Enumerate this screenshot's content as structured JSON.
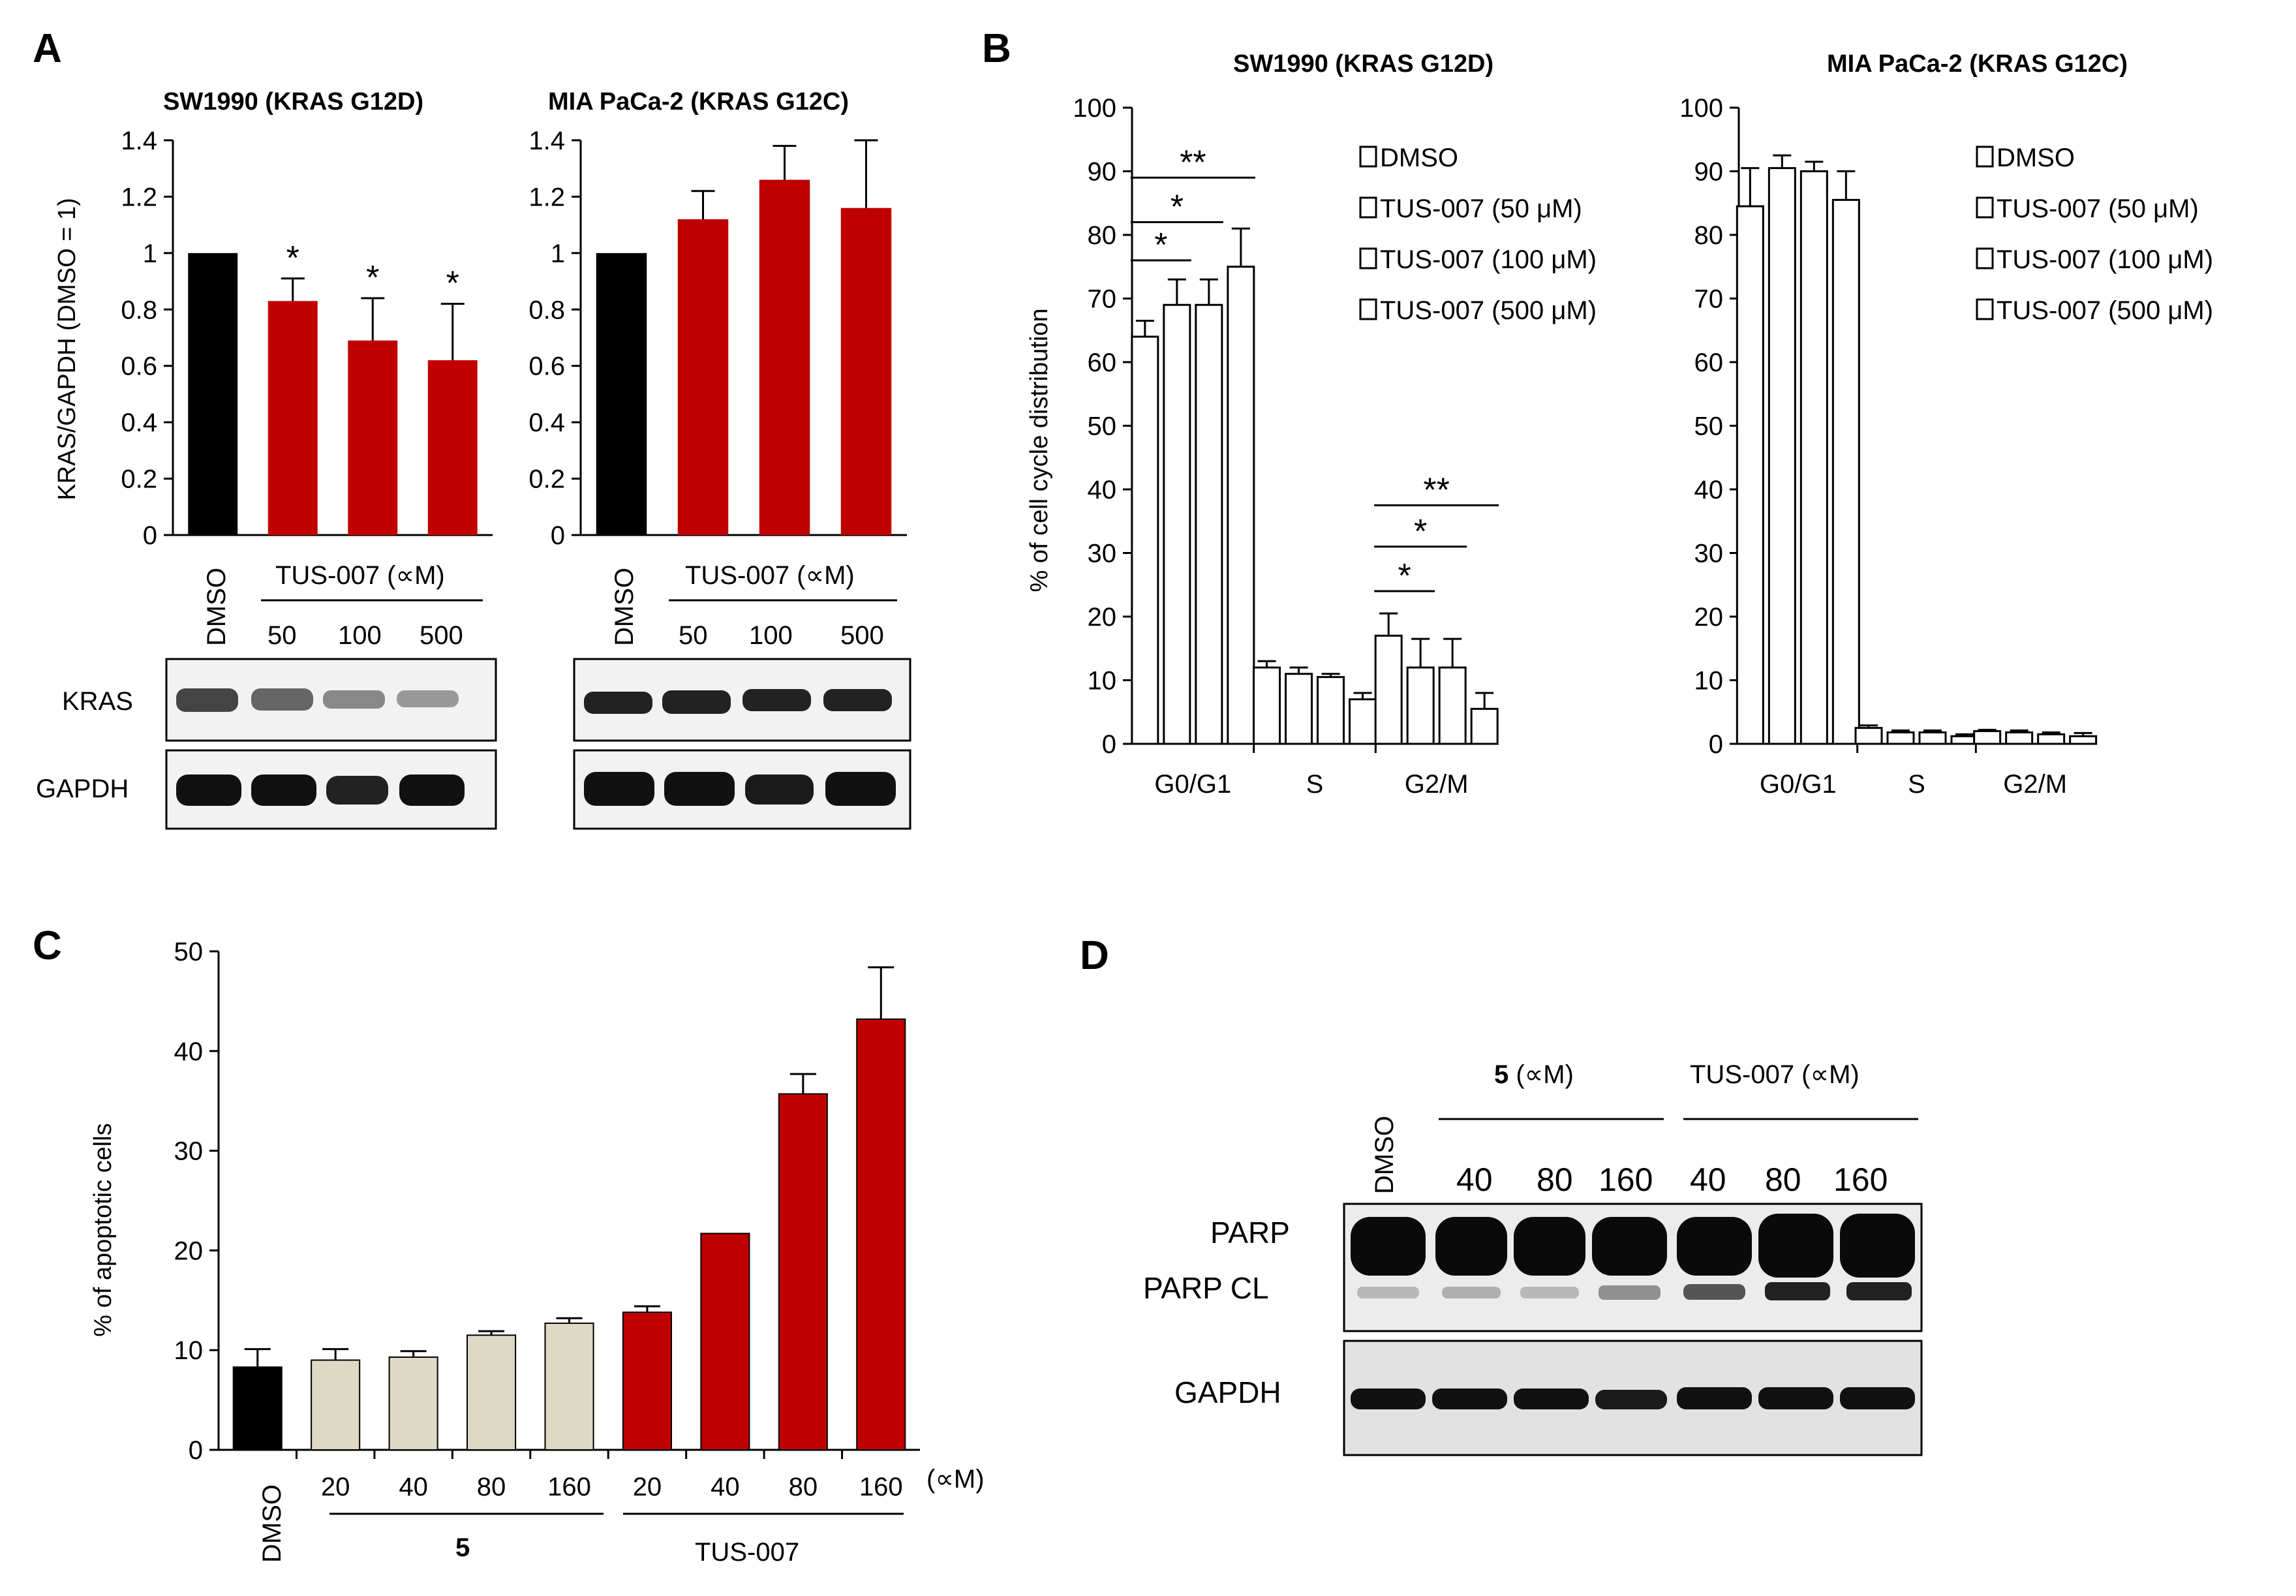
{
  "panels": {
    "A": "A",
    "B": "B",
    "C": "C",
    "D": "D"
  },
  "colors": {
    "black_bar": "#000000",
    "red_bar": "#C00000",
    "beige_bar": "#DDD9C4",
    "white_bar": "#FFFFFF"
  },
  "chart_data": [
    {
      "id": "A1",
      "type": "bar",
      "title": "SW1990 (KRAS G12D)",
      "ylabel": "KRAS/GAPDH (DMSO = 1)",
      "ylim": [
        0,
        1.4
      ],
      "yticks": [
        "0",
        "0.2",
        "0.4",
        "0.6",
        "0.8",
        "1",
        "1.2",
        "1.4"
      ],
      "categories": [
        "DMSO",
        "50",
        "100",
        "500"
      ],
      "group_label": "TUS-007 (∝M)",
      "values": [
        1.0,
        0.83,
        0.69,
        0.62
      ],
      "errors": [
        0,
        0.08,
        0.15,
        0.2
      ],
      "colors": [
        "#000000",
        "#C00000",
        "#C00000",
        "#C00000"
      ],
      "significance": [
        "",
        "*",
        "*",
        "*"
      ],
      "blot_labels": [
        "KRAS",
        "GAPDH"
      ]
    },
    {
      "id": "A2",
      "type": "bar",
      "title": "MIA PaCa-2 (KRAS G12C)",
      "ylim": [
        0,
        1.4
      ],
      "yticks": [
        "0",
        "0.2",
        "0.4",
        "0.6",
        "0.8",
        "1",
        "1.2",
        "1.4"
      ],
      "categories": [
        "DMSO",
        "50",
        "100",
        "500"
      ],
      "group_label": "TUS-007 (∝M)",
      "values": [
        1.0,
        1.12,
        1.26,
        1.16
      ],
      "errors": [
        0,
        0.1,
        0.12,
        0.24
      ],
      "colors": [
        "#000000",
        "#C00000",
        "#C00000",
        "#C00000"
      ]
    },
    {
      "id": "B1",
      "type": "bar",
      "title": "SW1990 (KRAS G12D)",
      "ylabel": "% of cell cycle distribution",
      "ylim": [
        0,
        100
      ],
      "yticks": [
        "0",
        "10",
        "20",
        "30",
        "40",
        "50",
        "60",
        "70",
        "80",
        "90",
        "100"
      ],
      "categories": [
        "G0/G1",
        "S",
        "G2/M"
      ],
      "legend": [
        "DMSO",
        "TUS-007 (50 μM)",
        "TUS-007 (100 μM)",
        "TUS-007 (500 μM)"
      ],
      "series": [
        {
          "name": "DMSO",
          "values": [
            64,
            12,
            17
          ],
          "errors": [
            2.5,
            1,
            3.5
          ]
        },
        {
          "name": "TUS-007 (50 μM)",
          "values": [
            69,
            11,
            12
          ],
          "errors": [
            4,
            1,
            4.5
          ]
        },
        {
          "name": "TUS-007 (100 μM)",
          "values": [
            69,
            10.5,
            12
          ],
          "errors": [
            4,
            0.5,
            4.5
          ]
        },
        {
          "name": "TUS-007 (500 μM)",
          "values": [
            75,
            7,
            5.5
          ],
          "errors": [
            6,
            1,
            2.5
          ]
        }
      ],
      "significance": [
        "*",
        "*",
        "**",
        "*",
        "*",
        "**"
      ]
    },
    {
      "id": "B2",
      "type": "bar",
      "title": "MIA PaCa-2 (KRAS G12C)",
      "ylim": [
        0,
        100
      ],
      "yticks": [
        "0",
        "10",
        "20",
        "30",
        "40",
        "50",
        "60",
        "70",
        "80",
        "90",
        "100"
      ],
      "categories": [
        "G0/G1",
        "S",
        "G2/M"
      ],
      "legend": [
        "DMSO",
        "TUS-007 (50 μM)",
        "TUS-007 (100 μM)",
        "TUS-007 (500 μM)"
      ],
      "series": [
        {
          "name": "DMSO",
          "values": [
            84.5,
            2.5,
            2
          ],
          "errors": [
            6,
            0.4,
            0.2
          ]
        },
        {
          "name": "TUS-007 (50 μM)",
          "values": [
            90.5,
            1.8,
            1.8
          ],
          "errors": [
            2,
            0.3,
            0.3
          ]
        },
        {
          "name": "TUS-007 (100 μM)",
          "values": [
            90,
            1.8,
            1.5
          ],
          "errors": [
            1.5,
            0.3,
            0.3
          ]
        },
        {
          "name": "TUS-007 (500 μM)",
          "values": [
            85.5,
            1.2,
            1.2
          ],
          "errors": [
            4.5,
            0.3,
            0.5
          ]
        }
      ]
    },
    {
      "id": "C",
      "type": "bar",
      "ylabel": "% of apoptotic cells",
      "ylim": [
        0,
        50
      ],
      "yticks": [
        "0",
        "10",
        "20",
        "30",
        "40",
        "50"
      ],
      "categories": [
        "DMSO",
        "20",
        "40",
        "80",
        "160",
        "20",
        "40",
        "80",
        "160"
      ],
      "unit_label": "(∝M)",
      "group_labels": [
        "5",
        "TUS-007"
      ],
      "values": [
        8.3,
        9.0,
        9.3,
        11.5,
        12.7,
        13.8,
        21.7,
        35.7,
        43.2
      ],
      "errors": [
        1.8,
        1.1,
        0.6,
        0.4,
        0.5,
        0.6,
        0,
        2.0,
        5.2
      ],
      "colors": [
        "#000000",
        "#DDD9C4",
        "#DDD9C4",
        "#DDD9C4",
        "#DDD9C4",
        "#C00000",
        "#C00000",
        "#C00000",
        "#C00000"
      ]
    }
  ],
  "blotD": {
    "dmso": "DMSO",
    "group1": "5",
    "group1_unit": " (∝M)",
    "group2": "TUS-007 (∝M)",
    "lanes": [
      "40",
      "80",
      "160",
      "40",
      "80",
      "160"
    ],
    "labels": [
      "PARP",
      "PARP CL",
      "GAPDH"
    ]
  }
}
